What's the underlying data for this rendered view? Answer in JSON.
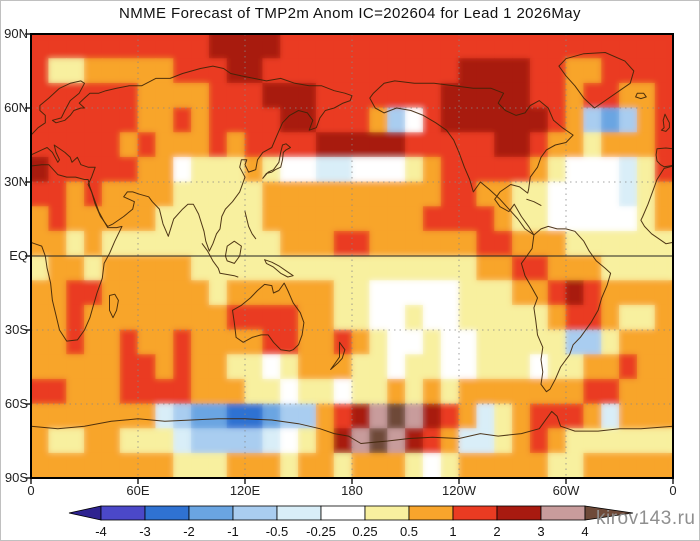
{
  "page": {
    "watermark": "kirov143.ru"
  },
  "chart_data": {
    "type": "heatmap",
    "title": "NMME Forecast of TMP2m Anom IC=202604 for Lead 1 2026May",
    "variable": "2m temperature anomaly forecast",
    "projection": "equirectangular, Pacific-centered, lon 0E-360E, lat 90N-90S",
    "grid_on": true,
    "colorbar": {
      "levels": [
        -4,
        -3,
        -2,
        -1,
        -0.5,
        -0.25,
        0.25,
        0.5,
        1,
        2,
        3,
        4
      ],
      "labels": [
        "-4",
        "-3",
        "-2",
        "-1",
        "-0.5",
        "-0.25",
        "0.25",
        "0.5",
        "1",
        "2",
        "3",
        "4"
      ],
      "colors": [
        "#2e2390",
        "#4b48c8",
        "#2f72d2",
        "#6aa5e2",
        "#a9cdf0",
        "#d9eef8",
        "#ffffff",
        "#f8f09f",
        "#f8a52c",
        "#ea3b22",
        "#a81a10",
        "#c89c9c",
        "#6e4a39"
      ]
    },
    "axes": {
      "lat_ticks": [
        {
          "label": "90N",
          "lat": 90
        },
        {
          "label": "60N",
          "lat": 60
        },
        {
          "label": "30N",
          "lat": 30
        },
        {
          "label": "EQ",
          "lat": 0
        },
        {
          "label": "30S",
          "lat": -30
        },
        {
          "label": "60S",
          "lat": -60
        },
        {
          "label": "90S",
          "lat": -90
        }
      ],
      "lon_ticks": [
        {
          "label": "0",
          "lon": 0
        },
        {
          "label": "60E",
          "lon": 60
        },
        {
          "label": "120E",
          "lon": 120
        },
        {
          "label": "180",
          "lon": 180
        },
        {
          "label": "120W",
          "lon": 240
        },
        {
          "label": "60W",
          "lon": 300
        },
        {
          "label": "0",
          "lon": 360
        }
      ]
    },
    "grid": {
      "lon_start": 5,
      "lon_step": 10,
      "lat_start": 85,
      "lat_step": -10,
      "cols": 36,
      "rows": 18,
      "values": [
        [
          1.5,
          1.5,
          1.5,
          1.5,
          1.5,
          1.5,
          1.5,
          1.5,
          1.5,
          1.5,
          2.5,
          2.5,
          2.5,
          2.5,
          1.5,
          1.5,
          1.5,
          1.5,
          1.5,
          1.5,
          1.5,
          1.5,
          1.5,
          1.5,
          1.5,
          1.5,
          1.5,
          1.5,
          1.5,
          1.5,
          1.5,
          1.5,
          1.5,
          1.5,
          1.5,
          1.5
        ],
        [
          1.5,
          0.4,
          0.4,
          0.7,
          0.7,
          0.7,
          0.7,
          0.7,
          1.5,
          1.5,
          1.5,
          2.5,
          2.5,
          1.5,
          1.5,
          1.5,
          1.5,
          1.5,
          1.5,
          1.5,
          1.5,
          1.5,
          1.5,
          1.5,
          2.5,
          2.5,
          2.5,
          2.5,
          1.5,
          1.5,
          0.7,
          0.7,
          1.5,
          1.5,
          1.5,
          1.5
        ],
        [
          1.5,
          1.5,
          1.5,
          1.5,
          1.5,
          1.5,
          0.7,
          0.7,
          0.7,
          0.7,
          1.5,
          1.5,
          1.5,
          2.5,
          2.5,
          2.5,
          1.5,
          1.5,
          1.5,
          1.5,
          1.5,
          1.5,
          1.5,
          2.5,
          2.5,
          2.5,
          2.5,
          2.5,
          1.5,
          1.5,
          0.7,
          1.5,
          1.5,
          0.7,
          0.7,
          1.5
        ],
        [
          1.5,
          1.5,
          1.5,
          1.5,
          1.5,
          1.5,
          0.7,
          0.7,
          1.5,
          0.7,
          1.5,
          1.5,
          1.5,
          1.5,
          2.5,
          2.5,
          1.5,
          1.5,
          1.5,
          0.7,
          -0.7,
          0,
          1.5,
          2.5,
          2.5,
          2.5,
          2.5,
          2.5,
          2.5,
          1.5,
          0.7,
          -0.7,
          -1.5,
          -0.7,
          0.7,
          1.5
        ],
        [
          1.5,
          1.5,
          1.5,
          1.5,
          1.5,
          0.7,
          1.5,
          0.7,
          0.7,
          0.7,
          1.5,
          0.7,
          1.5,
          1.5,
          1.5,
          1.5,
          2.5,
          2.5,
          2.5,
          2.5,
          2.5,
          1.5,
          1.5,
          1.5,
          1.5,
          1.5,
          2.5,
          2.5,
          1.5,
          0.7,
          0.7,
          0.4,
          0.7,
          0.7,
          0.7,
          1.5
        ],
        [
          2.5,
          1.5,
          1.5,
          1.5,
          1.5,
          1.5,
          0.7,
          0.7,
          0,
          0.4,
          0.4,
          0.4,
          0.7,
          0.4,
          0,
          0,
          -0.4,
          -0.4,
          0,
          0,
          0,
          0.4,
          0.7,
          1.5,
          1.5,
          1.5,
          1.5,
          1.5,
          0.7,
          0.4,
          0,
          0,
          0,
          -0.4,
          0.4,
          1.5
        ],
        [
          1.5,
          1.5,
          0.7,
          1.5,
          0.7,
          0.7,
          0.7,
          0.7,
          0.4,
          0.4,
          0.4,
          0.4,
          0.4,
          0.7,
          0.7,
          0.7,
          0.7,
          0.7,
          0.7,
          0.7,
          0.7,
          0.7,
          0.7,
          1.5,
          1.5,
          0.7,
          0.7,
          0.4,
          0.4,
          0,
          0,
          0,
          0,
          -0.4,
          0.4,
          0.7
        ],
        [
          0.7,
          1.5,
          0.7,
          0.7,
          0.7,
          0.7,
          0.7,
          0.4,
          0.4,
          0.4,
          0.4,
          0.4,
          0.4,
          0.7,
          0.7,
          0.7,
          0.7,
          0.7,
          0.7,
          0.7,
          0.7,
          0.7,
          1.5,
          1.5,
          1.5,
          1.5,
          0.7,
          0.4,
          0.4,
          0,
          0,
          0,
          0,
          0,
          0.4,
          0.7
        ],
        [
          0.7,
          0.7,
          0.4,
          0.7,
          0.4,
          0.4,
          0.4,
          0.4,
          0.4,
          0.4,
          0.4,
          0.4,
          0.4,
          0.4,
          0.7,
          0.7,
          0.7,
          1.5,
          1.5,
          0.7,
          0.7,
          0.7,
          0.7,
          0.7,
          0.7,
          1.5,
          1.5,
          0.7,
          0.7,
          0.7,
          0.4,
          0.4,
          0.4,
          0.4,
          0.4,
          0.4
        ],
        [
          0.4,
          0.7,
          0.7,
          0.4,
          0.7,
          0.7,
          0.7,
          0.7,
          0.7,
          0.4,
          0.4,
          0.4,
          0.4,
          0.4,
          0.4,
          0.4,
          0.4,
          0.4,
          0.4,
          0.4,
          0.4,
          0.4,
          0.4,
          0.4,
          0.4,
          0.7,
          0.7,
          1.5,
          1.5,
          0.7,
          0.7,
          0.7,
          0.4,
          0.4,
          0.4,
          0.4
        ],
        [
          0.7,
          0.7,
          1.5,
          1.5,
          0.7,
          0.7,
          0.7,
          0.7,
          0.7,
          0.7,
          0.4,
          0.7,
          0.7,
          0.7,
          0.7,
          0.7,
          0.7,
          0.4,
          0.4,
          0,
          0,
          0,
          0,
          0,
          0.4,
          0.4,
          0.4,
          0.7,
          0.7,
          1.5,
          2.5,
          1.5,
          0.7,
          0.7,
          0.7,
          0.7
        ],
        [
          0.7,
          0.7,
          1.5,
          0.7,
          0.7,
          0.7,
          0.7,
          0.7,
          0.7,
          0.7,
          0.7,
          1.5,
          1.5,
          1.5,
          1.5,
          0.7,
          0.7,
          0.4,
          0.4,
          0,
          0,
          0.4,
          0,
          0,
          0.4,
          0.4,
          0.4,
          0.4,
          0.4,
          0.7,
          1.5,
          1.5,
          0.7,
          0.4,
          0.4,
          0.7
        ],
        [
          0.7,
          0.7,
          1.5,
          0.7,
          0.7,
          1.5,
          0.7,
          0.7,
          1.5,
          0.7,
          0.7,
          0.7,
          0.7,
          1.5,
          1.5,
          0.7,
          0.7,
          1.5,
          0.7,
          0.4,
          0,
          0,
          0.4,
          0,
          0,
          0.4,
          0.4,
          0.4,
          0.4,
          0.4,
          -0.7,
          -0.7,
          0.4,
          0.7,
          0.7,
          0.7
        ],
        [
          0.7,
          0.7,
          0.7,
          0.7,
          0.7,
          1.5,
          1.5,
          0.7,
          1.5,
          0.7,
          0.7,
          0.4,
          0.4,
          0,
          0.4,
          0.7,
          0.7,
          0.7,
          0.4,
          0.4,
          0,
          0.4,
          0.4,
          0,
          0,
          0.4,
          0.4,
          0.4,
          0,
          0.4,
          0.4,
          0.7,
          0.7,
          1.5,
          0.7,
          0.7
        ],
        [
          1.5,
          1.5,
          0.7,
          0.7,
          0.7,
          1.5,
          1.5,
          1.5,
          1.5,
          0.7,
          0.7,
          0.7,
          0.4,
          0.4,
          0,
          0.4,
          0.4,
          0,
          0.4,
          0.4,
          0.7,
          0.4,
          0.7,
          0.4,
          0.7,
          0.7,
          0.7,
          0.7,
          0.7,
          0.7,
          0.7,
          1.5,
          1.5,
          0.7,
          0.7,
          0.7
        ],
        [
          0.7,
          0.7,
          0.7,
          0.7,
          0.7,
          0.7,
          0.7,
          -0.4,
          -0.7,
          -1.5,
          -1.5,
          -2.5,
          -2.5,
          -1.5,
          -0.7,
          -0.7,
          0.7,
          1.5,
          2.5,
          3.5,
          4.5,
          3.5,
          2.5,
          1.5,
          0.7,
          -0.4,
          0.4,
          0.7,
          1.5,
          1.5,
          1.5,
          0.7,
          -0.4,
          0.7,
          0.7,
          0.7
        ],
        [
          0.7,
          0.4,
          0.4,
          0.7,
          0.7,
          0.4,
          0.4,
          0.4,
          -0.4,
          -0.7,
          -0.7,
          -0.7,
          -0.7,
          -0.4,
          0,
          0.4,
          0.7,
          2.5,
          3.5,
          4.5,
          3.5,
          2.5,
          1.5,
          0.7,
          -0.4,
          -0.4,
          0.4,
          0.7,
          1.5,
          0.7,
          0.4,
          0.4,
          0.4,
          0.4,
          0.4,
          0.4
        ],
        [
          0.7,
          0.7,
          0.7,
          0.7,
          0.7,
          0.7,
          0.7,
          0.7,
          0.4,
          0.4,
          0.4,
          0.7,
          0.7,
          0.7,
          0.4,
          0.7,
          0.7,
          0.4,
          0.7,
          0.7,
          0.7,
          0.4,
          0,
          0.4,
          0.7,
          0.7,
          0.7,
          0.7,
          0.7,
          0.4,
          0.4,
          0.7,
          0.7,
          0.7,
          0.7,
          0.7
        ]
      ]
    }
  }
}
